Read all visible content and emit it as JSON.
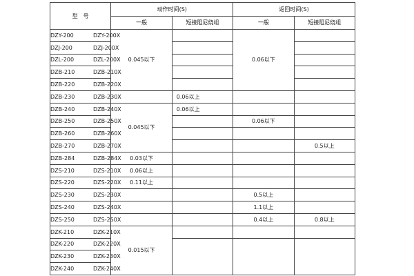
{
  "header": {
    "model": "型　号",
    "action_time": "动作时间(S)",
    "return_time": "返回时间(S)",
    "general": "一般",
    "short_damping": "短接阻尼绕组"
  },
  "models": [
    [
      "DZY-200",
      "DZY-200X"
    ],
    [
      "DZJ-200",
      "DZJ-200X"
    ],
    [
      "DZL-200",
      "DZL-200X"
    ],
    [
      "DZB-210",
      "DZB-210X"
    ],
    [
      "DZB-220",
      "DZB-220X"
    ],
    [
      "DZB-230",
      "DZB-230X"
    ],
    [
      "DZB-240",
      "DZB-240X"
    ],
    [
      "DZB-250",
      "DZB-250X"
    ],
    [
      "DZB-260",
      "DZB-260X"
    ],
    [
      "DZB-270",
      "DZB-270X"
    ],
    [
      "DZB-284",
      "DZB-284X"
    ],
    [
      "DZS-210",
      "DZS-210X"
    ],
    [
      "DZS-220",
      "DZS-220X"
    ],
    [
      "DZS-230",
      "DZS-230X"
    ],
    [
      "DZS-240",
      "DZS-240X"
    ],
    [
      "DZS-250",
      "DZS-250X"
    ],
    [
      "DZK-210",
      "DZK-210X"
    ],
    [
      "DZK-220",
      "DZK-220X"
    ],
    [
      "DZK-230",
      "DZK-230X"
    ],
    [
      "DZK-240",
      "DZK-240X"
    ]
  ],
  "action_general": [
    "0.045以下",
    "",
    "0.045以下",
    "0.03以下",
    "0.06以上",
    "0.11以上",
    "",
    "",
    "",
    "0.015以下"
  ],
  "action_short": [
    "",
    "",
    "",
    "",
    "",
    "0.06以上",
    "0.06以上",
    "",
    "",
    "",
    "",
    "",
    "",
    "",
    "",
    "",
    "",
    ""
  ],
  "return_general": [
    "0.06以下",
    "",
    "",
    "0.06以下",
    "",
    "",
    "",
    "",
    "",
    "0.5以上",
    "1.1以上",
    "0.4以上",
    "",
    ""
  ],
  "return_short": [
    "",
    "",
    "",
    "",
    "",
    "",
    "",
    "",
    "",
    "0.5以上",
    "",
    "",
    "",
    "",
    "",
    "0.8以上",
    "",
    ""
  ]
}
